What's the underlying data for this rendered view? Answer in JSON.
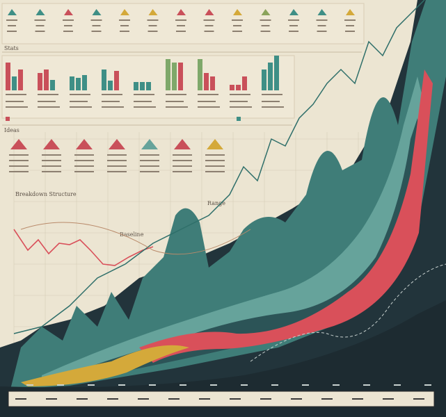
{
  "sections": {
    "stats": "Stats",
    "ideas": "Ideas",
    "breakdown": "Breakdown Structure",
    "range": "Range",
    "baseline": "Baseline"
  }
}
